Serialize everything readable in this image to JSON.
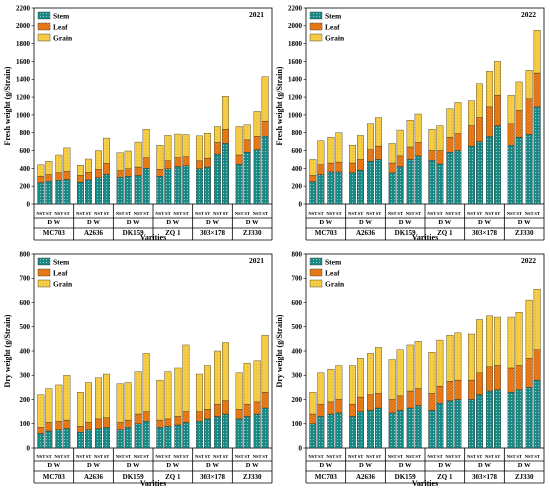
{
  "chart_data": [
    {
      "id": "fresh-2021",
      "type": "bar",
      "stacked": true,
      "ylabel": "Fresh weight (g/Strain)",
      "xlabel": "Varities",
      "year": "2021",
      "ylim": [
        0,
        2200
      ],
      "yticks": [
        0,
        200,
        400,
        600,
        800,
        1000,
        1200,
        1400,
        1600,
        1800,
        2000,
        2200
      ],
      "legend_position": "top-left",
      "varieties": [
        "MC703",
        "A2636",
        "DK159",
        "ZQ 1",
        "303×178",
        "ZJ330"
      ],
      "groups": [
        "D",
        "W"
      ],
      "treatments": [
        "NST",
        "ST"
      ],
      "group_label": "D W",
      "series": [
        {
          "name": "Stem",
          "color": "#1a8a86",
          "values": [
            [
              240,
              255,
              265,
              275
            ],
            [
              245,
              270,
              295,
              335
            ],
            [
              300,
              310,
              320,
              400
            ],
            [
              310,
              395,
              420,
              430
            ],
            [
              395,
              415,
              560,
              680
            ],
            [
              445,
              580,
              610,
              760
            ]
          ]
        },
        {
          "name": "Leaf",
          "color": "#f07f19",
          "values": [
            [
              70,
              75,
              85,
              90
            ],
            [
              75,
              85,
              95,
              120
            ],
            [
              75,
              85,
              95,
              120
            ],
            [
              80,
              90,
              100,
              100
            ],
            [
              90,
              100,
              130,
              160
            ],
            [
              105,
              140,
              150,
              170
            ]
          ]
        },
        {
          "name": "Grain",
          "color": "#f7cd45",
          "values": [
            [
              130,
              150,
              200,
              265
            ],
            [
              115,
              150,
              210,
              285
            ],
            [
              200,
              200,
              280,
              320
            ],
            [
              270,
              285,
              265,
              250
            ],
            [
              280,
              280,
              180,
              370
            ],
            [
              320,
              170,
              280,
              500
            ]
          ]
        }
      ]
    },
    {
      "id": "fresh-2022",
      "type": "bar",
      "stacked": true,
      "ylabel": "Fresh weight (g/Strain)",
      "xlabel": "Varities",
      "year": "2022",
      "ylim": [
        0,
        2200
      ],
      "yticks": [
        0,
        200,
        400,
        600,
        800,
        1000,
        1200,
        1400,
        1600,
        1800,
        2000,
        2200
      ],
      "legend_position": "top-left",
      "varieties": [
        "MC703",
        "A2636",
        "DK159",
        "ZQ 1",
        "303×178",
        "ZJ330"
      ],
      "groups": [
        "D",
        "W"
      ],
      "treatments": [
        "NST",
        "ST"
      ],
      "group_label": "D W",
      "series": [
        {
          "name": "Stem",
          "color": "#1a8a86",
          "values": [
            [
              250,
              330,
              360,
              360
            ],
            [
              350,
              380,
              480,
              500
            ],
            [
              350,
              420,
              500,
              540
            ],
            [
              490,
              450,
              580,
              600
            ],
            [
              650,
              700,
              760,
              880
            ],
            [
              660,
              750,
              780,
              1090
            ]
          ]
        },
        {
          "name": "Leaf",
          "color": "#f07f19",
          "values": [
            [
              70,
              110,
              100,
              110
            ],
            [
              110,
              120,
              130,
              150
            ],
            [
              110,
              120,
              140,
              150
            ],
            [
              110,
              150,
              170,
              190
            ],
            [
              230,
              270,
              330,
              340
            ],
            [
              240,
              300,
              400,
              380
            ]
          ]
        },
        {
          "name": "Grain",
          "color": "#f7cd45",
          "values": [
            [
              180,
              270,
              290,
              330
            ],
            [
              200,
              270,
              290,
              320
            ],
            [
              220,
              290,
              300,
              320
            ],
            [
              240,
              280,
              320,
              350
            ],
            [
              280,
              380,
              400,
              380
            ],
            [
              320,
              320,
              320,
              480
            ]
          ]
        }
      ]
    },
    {
      "id": "dry-2021",
      "type": "bar",
      "stacked": true,
      "ylabel": "Dry weight (g/Strain)",
      "xlabel": "Varities",
      "year": "2021",
      "ylim": [
        0,
        800
      ],
      "yticks": [
        0,
        100,
        200,
        300,
        400,
        500,
        600,
        700,
        800
      ],
      "legend_position": "top-left",
      "varieties": [
        "MC703",
        "A2636",
        "DK159",
        "ZQ 1",
        "303×178",
        "ZJ330"
      ],
      "groups": [
        "D",
        "W"
      ],
      "treatments": [
        "NST",
        "ST"
      ],
      "group_label": "D W",
      "series": [
        {
          "name": "Stem",
          "color": "#1a8a86",
          "values": [
            [
              60,
              70,
              75,
              80
            ],
            [
              65,
              75,
              80,
              85
            ],
            [
              75,
              85,
              100,
              110
            ],
            [
              85,
              90,
              95,
              105
            ],
            [
              110,
              120,
              130,
              140
            ],
            [
              120,
              130,
              140,
              165
            ]
          ]
        },
        {
          "name": "Leaf",
          "color": "#f07f19",
          "values": [
            [
              25,
              35,
              35,
              35
            ],
            [
              25,
              30,
              40,
              40
            ],
            [
              30,
              30,
              40,
              40
            ],
            [
              30,
              30,
              35,
              45
            ],
            [
              40,
              40,
              50,
              55
            ],
            [
              40,
              50,
              50,
              65
            ]
          ]
        },
        {
          "name": "Grain",
          "color": "#f7cd45",
          "values": [
            [
              135,
              140,
              150,
              185
            ],
            [
              140,
              165,
              170,
              180
            ],
            [
              160,
              155,
              175,
              240
            ],
            [
              165,
              195,
              200,
              275
            ],
            [
              155,
              180,
              220,
              240
            ],
            [
              150,
              170,
              170,
              235
            ]
          ]
        }
      ]
    },
    {
      "id": "dry-2022",
      "type": "bar",
      "stacked": true,
      "ylabel": "Dry weight (g/Strain)",
      "xlabel": "Varities",
      "year": "2022",
      "ylim": [
        0,
        800
      ],
      "yticks": [
        0,
        100,
        200,
        300,
        400,
        500,
        600,
        700,
        800
      ],
      "legend_position": "top-left",
      "varieties": [
        "MC703",
        "A2636",
        "DK159",
        "ZQ 1",
        "303×178",
        "ZJ330"
      ],
      "groups": [
        "D",
        "W"
      ],
      "treatments": [
        "NST",
        "ST"
      ],
      "group_label": "D W",
      "series": [
        {
          "name": "Stem",
          "color": "#1a8a86",
          "values": [
            [
              100,
              130,
              140,
              145
            ],
            [
              130,
              150,
              155,
              165
            ],
            [
              145,
              155,
              165,
              175
            ],
            [
              155,
              185,
              195,
              200
            ],
            [
              200,
              220,
              235,
              240
            ],
            [
              230,
              240,
              250,
              280
            ]
          ]
        },
        {
          "name": "Leaf",
          "color": "#f07f19",
          "values": [
            [
              40,
              50,
              50,
              55
            ],
            [
              50,
              60,
              65,
              60
            ],
            [
              55,
              60,
              70,
              70
            ],
            [
              70,
              70,
              80,
              80
            ],
            [
              80,
              90,
              100,
              100
            ],
            [
              100,
              100,
              120,
              125
            ]
          ]
        },
        {
          "name": "Grain",
          "color": "#f7cd45",
          "values": [
            [
              90,
              130,
              135,
              140
            ],
            [
              160,
              160,
              170,
              190
            ],
            [
              165,
              190,
              190,
              195
            ],
            [
              170,
              190,
              190,
              195
            ],
            [
              190,
              220,
              210,
              200
            ],
            [
              210,
              220,
              240,
              250
            ]
          ]
        }
      ]
    }
  ]
}
